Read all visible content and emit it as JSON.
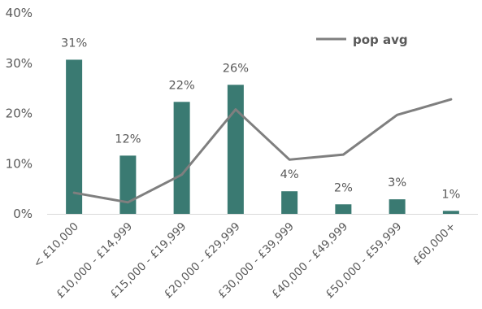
{
  "chart_data": {
    "type": "bar",
    "title": "",
    "xlabel": "",
    "ylabel": "",
    "ylim": [
      0,
      40
    ],
    "yticks": [
      "0%",
      "10%",
      "20%",
      "30%",
      "40%"
    ],
    "grid": false,
    "legend": "top-right",
    "categories": [
      "< £10,000",
      "£10,000 - £14,999",
      "£15,000 - £19,999",
      "£20,000 - £29,999",
      "£30,000 - £39,999",
      "£40,000 - £49,999",
      "£50,000 - £59,999",
      "£60,000+"
    ],
    "series": [
      {
        "type": "bar",
        "values": [
          30.7,
          11.6,
          22.3,
          25.7,
          4.5,
          1.9,
          2.9,
          0.6
        ],
        "data_labels": [
          "31%",
          "12%",
          "22%",
          "26%",
          "4%",
          "2%",
          "3%",
          "1%"
        ],
        "color": "#3a7a72"
      },
      {
        "type": "line",
        "name": "pop avg",
        "values": [
          4.2,
          2.3,
          7.8,
          20.8,
          10.8,
          11.8,
          19.7,
          22.8
        ],
        "color": "#7f7f7f"
      }
    ]
  }
}
